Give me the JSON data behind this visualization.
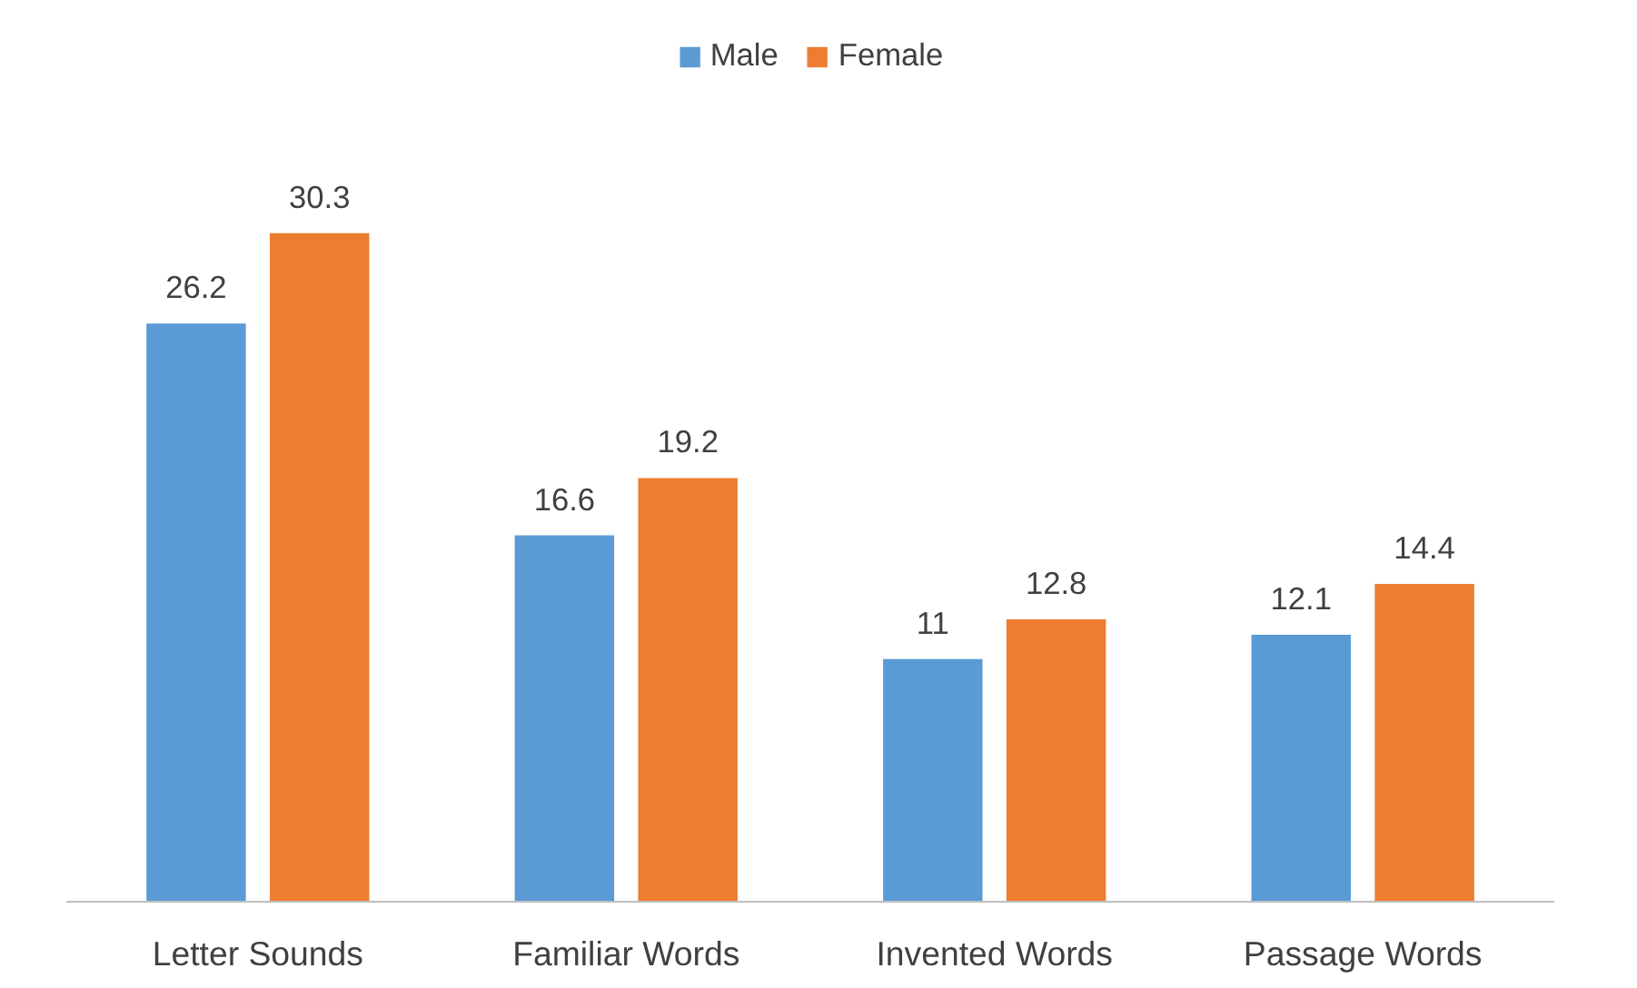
{
  "chart_data": {
    "type": "bar",
    "categories": [
      "Letter Sounds",
      "Familiar Words",
      "Invented Words",
      "Passage Words"
    ],
    "series": [
      {
        "name": "Male",
        "color": "#5b9bd5",
        "values": [
          26.2,
          16.6,
          11,
          12.1
        ]
      },
      {
        "name": "Female",
        "color": "#ed7d31",
        "values": [
          30.3,
          19.2,
          12.8,
          14.4
        ]
      }
    ],
    "data_labels": true,
    "grid": false,
    "legend": "top"
  }
}
